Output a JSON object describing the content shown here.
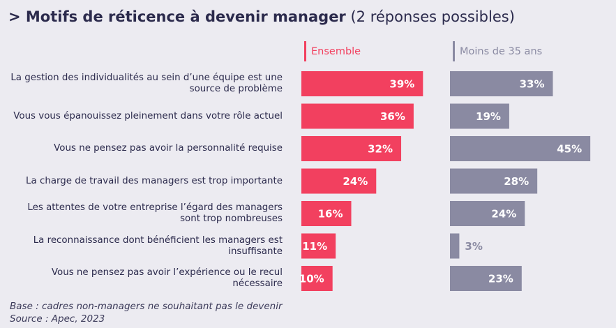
{
  "chart_data": {
    "type": "bar",
    "orientation": "horizontal",
    "title": "> Motifs de réticence à devenir manager",
    "subtitle": "(2 réponses possibles)",
    "categories": [
      "La gestion des individualités au sein d’une équipe est une source de problème",
      "Vous vous épanouissez pleinement dans votre rôle actuel",
      "Vous ne pensez pas avoir la personnalité requise",
      "La charge de travail des managers est trop importante",
      "Les attentes de votre entreprise l’égard des managers sont trop nombreuses",
      "La reconnaissance dont bénéficient les managers est insuffisante",
      "Vous ne pensez pas avoir l’expérience ou le recul nécessaire"
    ],
    "series": [
      {
        "name": "Ensemble",
        "color": "#f2405f",
        "values": [
          39,
          36,
          32,
          24,
          16,
          11,
          10
        ],
        "value_labels": [
          "39%",
          "36%",
          "32%",
          "24%",
          "16%",
          "11%",
          "10%"
        ]
      },
      {
        "name": "Moins de 35 ans",
        "color": "#8a8aa2",
        "values": [
          33,
          19,
          45,
          28,
          24,
          3,
          23
        ],
        "value_labels": [
          "33%",
          "19%",
          "45%",
          "28%",
          "24%",
          "3%",
          "23%"
        ]
      }
    ],
    "notes": [
      "Base : cadres non-managers ne souhaitant pas le devenir",
      "Source : Apec, 2023"
    ]
  }
}
